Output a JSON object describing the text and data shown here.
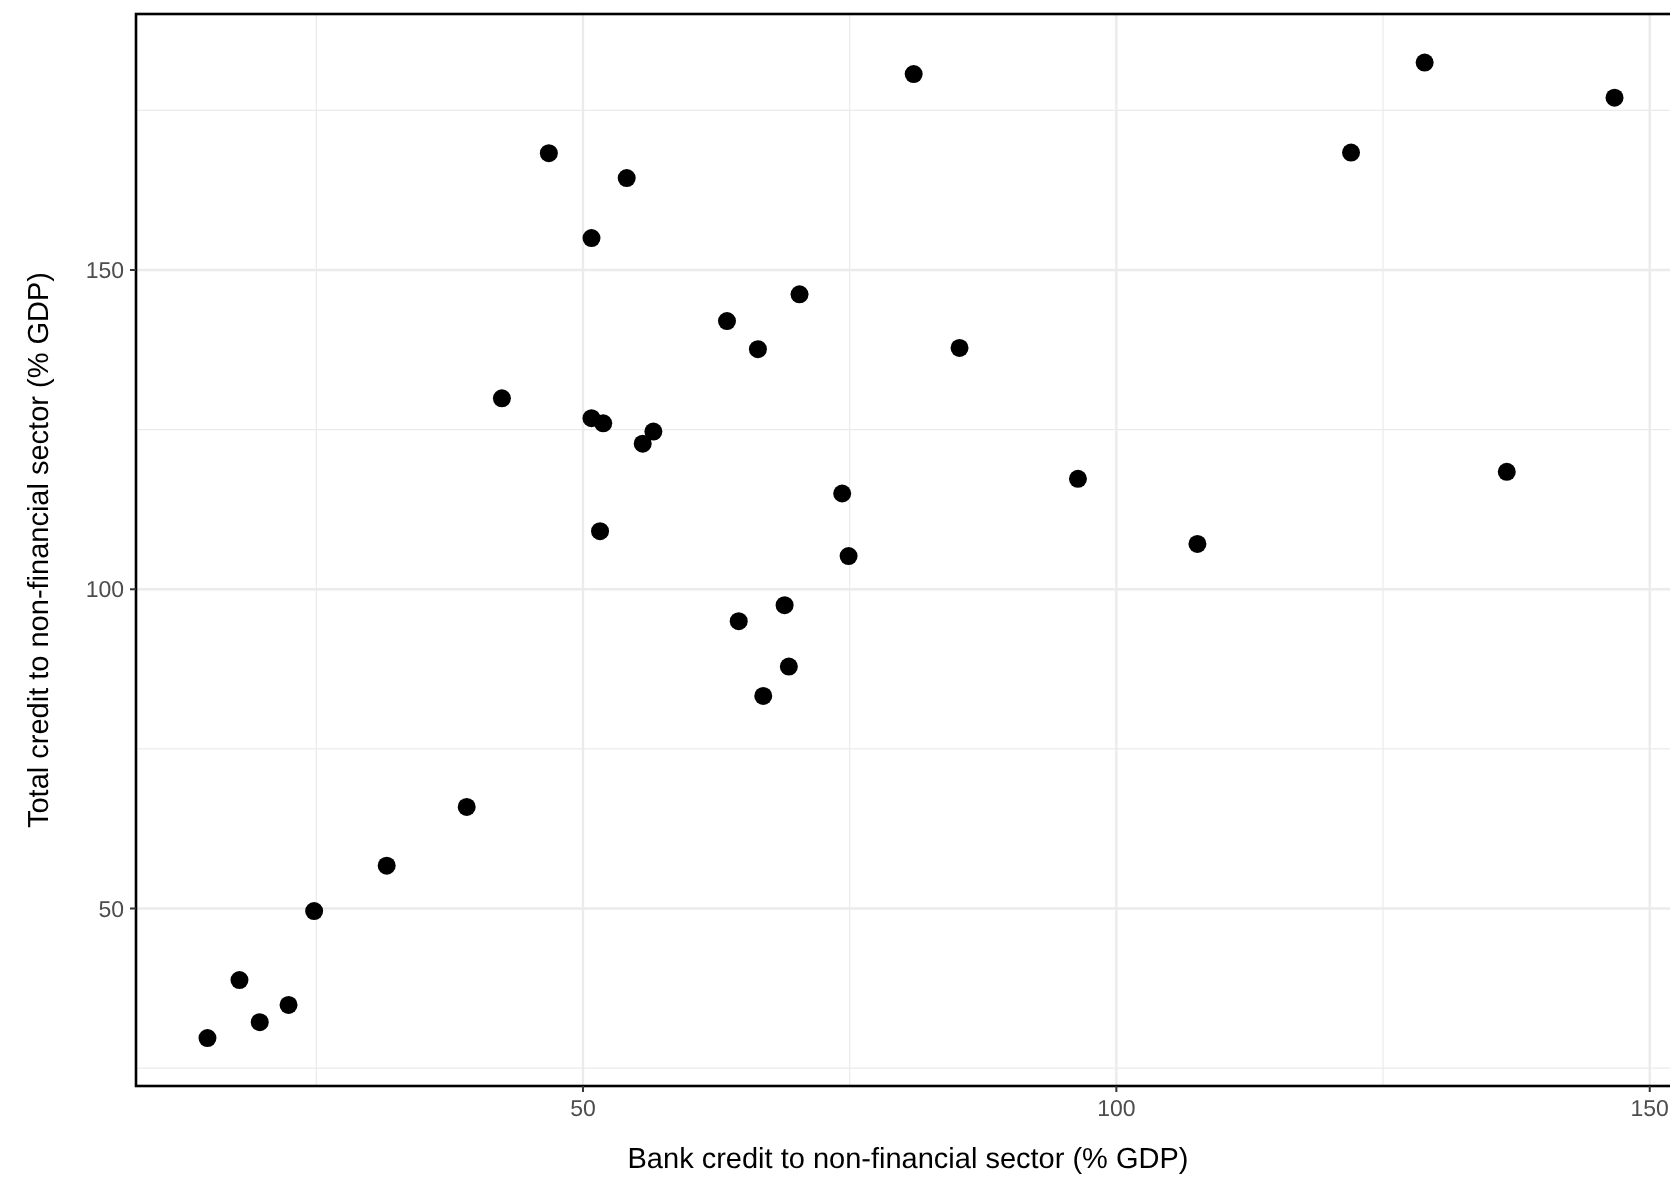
{
  "chart_data": {
    "type": "scatter",
    "xlabel": "Bank credit to non-financial sector (% GDP)",
    "ylabel": "Total credit to non-financial sector (% GDP)",
    "x": [
      46.8,
      54.1,
      50.8,
      70.3,
      63.5,
      66.4,
      42.4,
      50.8,
      51.9,
      56.6,
      55.6,
      74.3,
      51.6,
      74.9,
      81.0,
      128.9,
      146.7,
      122.0,
      85.3,
      96.4,
      136.6,
      107.6,
      64.6,
      68.9,
      69.3,
      66.9,
      39.1,
      31.6,
      24.8,
      17.8,
      22.4,
      19.7,
      14.8
    ],
    "values": [
      168.3,
      164.4,
      155.0,
      146.2,
      142.0,
      137.6,
      129.9,
      126.8,
      126.0,
      124.7,
      122.8,
      115.0,
      109.1,
      105.2,
      180.7,
      182.5,
      177.0,
      168.4,
      137.8,
      117.3,
      118.4,
      107.1,
      95.0,
      97.5,
      87.9,
      83.3,
      65.9,
      56.7,
      49.6,
      38.8,
      34.9,
      32.2,
      29.7
    ],
    "color": "#000000",
    "marker": "circle",
    "xlim": [
      8.1,
      151.9
    ],
    "ylim": [
      22.2,
      190.1
    ],
    "xticks": [
      50,
      100,
      150
    ],
    "yticks": [
      50,
      100,
      150
    ],
    "grid": true
  }
}
